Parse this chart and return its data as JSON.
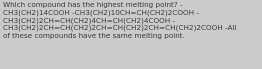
{
  "lines": [
    "Which compound has the highest melting point? -",
    "CH3(CH2)14COOH -CH3(CH2)10CH=CH(CH2)2COOH -",
    "CH3(CH2)2CH=CH(CH2)4CH=CH(CH2)4COOH -",
    "CH3(CH2)2CH=CH(CH2)2CH=CH(CH2)2CH=CH(CH2)2COOH -All",
    "of these compounds have the same melting point."
  ],
  "font_size": 5.2,
  "text_color": "#3a3a3a",
  "bg_color": "#cbcbcb"
}
